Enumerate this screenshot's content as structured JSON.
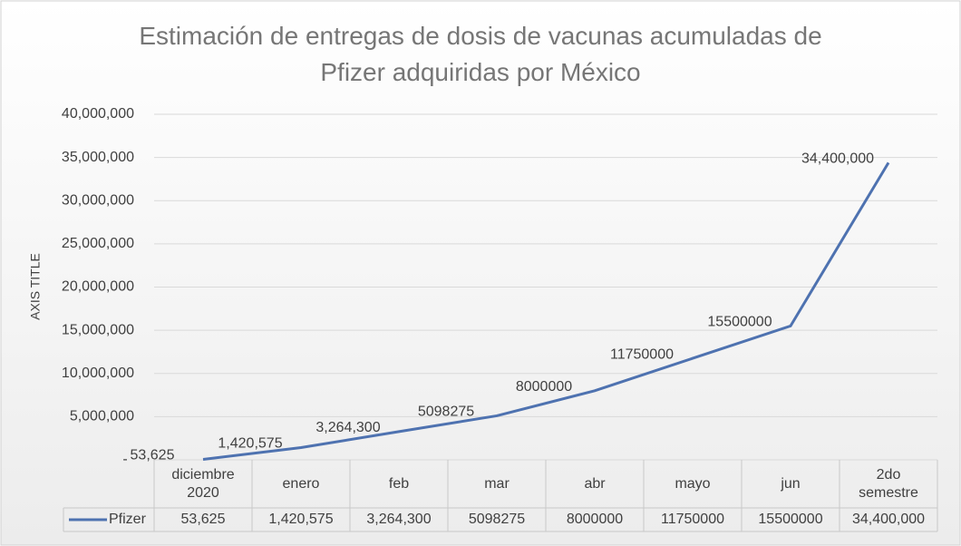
{
  "chart_data": {
    "type": "line",
    "title": "Estimación de entregas de dosis de vacunas acumuladas de Pfizer adquiridas por México",
    "y_axis_label": "AXIS TITLE",
    "categories": [
      "diciembre 2020",
      "enero",
      "feb",
      "mar",
      "abr",
      "mayo",
      "jun",
      "2do semestre"
    ],
    "series": [
      {
        "name": "Pfizer",
        "color": "#4e72b0",
        "values": [
          53625,
          1420575,
          3264300,
          5098275,
          8000000,
          11750000,
          15500000,
          34400000
        ],
        "value_labels": [
          "53,625",
          "1,420,575",
          "3,264,300",
          "5098275",
          "8000000",
          "11750000",
          "15500000",
          "34,400,000"
        ]
      }
    ],
    "ylim": [
      0,
      40000000
    ],
    "yticks": [
      {
        "value": 0,
        "label": "-"
      },
      {
        "value": 5000000,
        "label": "5,000,000"
      },
      {
        "value": 10000000,
        "label": "10,000,000"
      },
      {
        "value": 15000000,
        "label": "15,000,000"
      },
      {
        "value": 20000000,
        "label": "20,000,000"
      },
      {
        "value": 25000000,
        "label": "25,000,000"
      },
      {
        "value": 30000000,
        "label": "30,000,000"
      },
      {
        "value": 35000000,
        "label": "35,000,000"
      },
      {
        "value": 40000000,
        "label": "40,000,000"
      }
    ],
    "grid": true,
    "data_table": true
  }
}
